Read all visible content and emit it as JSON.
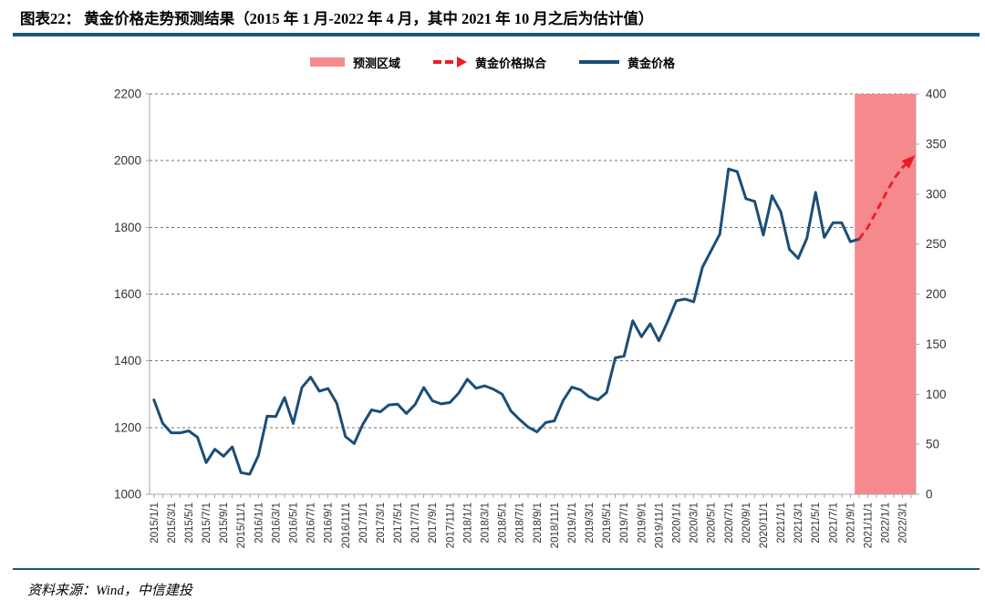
{
  "header": {
    "title": "图表22： 黄金价格走势预测结果（2015 年 1 月-2022 年 4 月，其中 2021 年 10 月之后为估计值）"
  },
  "footer": {
    "source": "资料来源：Wind，中信建投"
  },
  "theme": {
    "rule_color": "#1B567C",
    "background": "#FFFFFF"
  },
  "legend": [
    {
      "type": "area",
      "label": "预测区域",
      "color": "#F5898D"
    },
    {
      "type": "dashed-arrow",
      "label": "黄金价格拟合",
      "color": "#EC1C24"
    },
    {
      "type": "line",
      "label": "黄金价格",
      "color": "#1B4E78"
    }
  ],
  "chart_data": {
    "type": "line",
    "title": "",
    "xlabel": "",
    "ylabel_left": "",
    "ylabel_right": "",
    "x_start": "2015/1/1",
    "x_end": "2022/4/1",
    "months_total": 88,
    "x_tick_every": 2,
    "x_tick_labels": [
      "2015/1/1",
      "2015/3/1",
      "2015/5/1",
      "2015/7/1",
      "2015/9/1",
      "2015/11/1",
      "2016/1/1",
      "2016/3/1",
      "2016/5/1",
      "2016/7/1",
      "2016/9/1",
      "2016/11/1",
      "2017/1/1",
      "2017/3/1",
      "2017/5/1",
      "2017/7/1",
      "2017/9/1",
      "2017/11/1",
      "2018/1/1",
      "2018/3/1",
      "2018/5/1",
      "2018/7/1",
      "2018/9/1",
      "2018/11/1",
      "2019/1/1",
      "2019/3/1",
      "2019/5/1",
      "2019/7/1",
      "2019/9/1",
      "2019/11/1",
      "2020/1/1",
      "2020/3/1",
      "2020/5/1",
      "2020/7/1",
      "2020/9/1",
      "2020/11/1",
      "2021/1/1",
      "2021/3/1",
      "2021/5/1",
      "2021/7/1",
      "2021/9/1",
      "2021/11/1",
      "2022/1/1",
      "2022/3/1"
    ],
    "ylim_left": [
      1000,
      2200
    ],
    "yticks_left": [
      1000,
      1200,
      1400,
      1600,
      1800,
      2000,
      2200
    ],
    "ylim_right": [
      0,
      400
    ],
    "yticks_right": [
      0,
      50,
      100,
      150,
      200,
      250,
      300,
      350,
      400
    ],
    "grid": "dashed-horizontal",
    "legend_position": "top-center",
    "forecast_region": {
      "label": "预测区域",
      "start_index": 81,
      "color": "#F5898D"
    },
    "series": [
      {
        "name": "黄金价格",
        "style": "solid",
        "color": "#1B4E78",
        "axis": "left",
        "start_index": 0,
        "values": [
          1283,
          1213,
          1184,
          1184,
          1190,
          1171,
          1095,
          1135,
          1114,
          1142,
          1065,
          1060,
          1116,
          1234,
          1233,
          1290,
          1212,
          1320,
          1351,
          1309,
          1317,
          1273,
          1173,
          1152,
          1210,
          1253,
          1247,
          1268,
          1270,
          1242,
          1269,
          1320,
          1280,
          1271,
          1275,
          1303,
          1345,
          1318,
          1325,
          1315,
          1300,
          1250,
          1224,
          1201,
          1187,
          1215,
          1220,
          1281,
          1321,
          1313,
          1292,
          1283,
          1305,
          1409,
          1414,
          1520,
          1472,
          1511,
          1460,
          1517,
          1580,
          1585,
          1577,
          1680,
          1730,
          1780,
          1975,
          1967,
          1886,
          1878,
          1777,
          1895,
          1847,
          1734,
          1707,
          1767,
          1905,
          1770,
          1814,
          1814,
          1757,
          1765
        ]
      },
      {
        "name": "黄金价格拟合",
        "style": "dashed",
        "color": "#EC1C24",
        "axis": "left",
        "start_index": 81,
        "arrow_end": true,
        "values": [
          1765,
          1800,
          1848,
          1898,
          1945,
          1980,
          2005
        ]
      }
    ],
    "colors": {
      "grid": "#737373",
      "axis": "#A6A6A6",
      "tick_text": "#333333"
    }
  }
}
